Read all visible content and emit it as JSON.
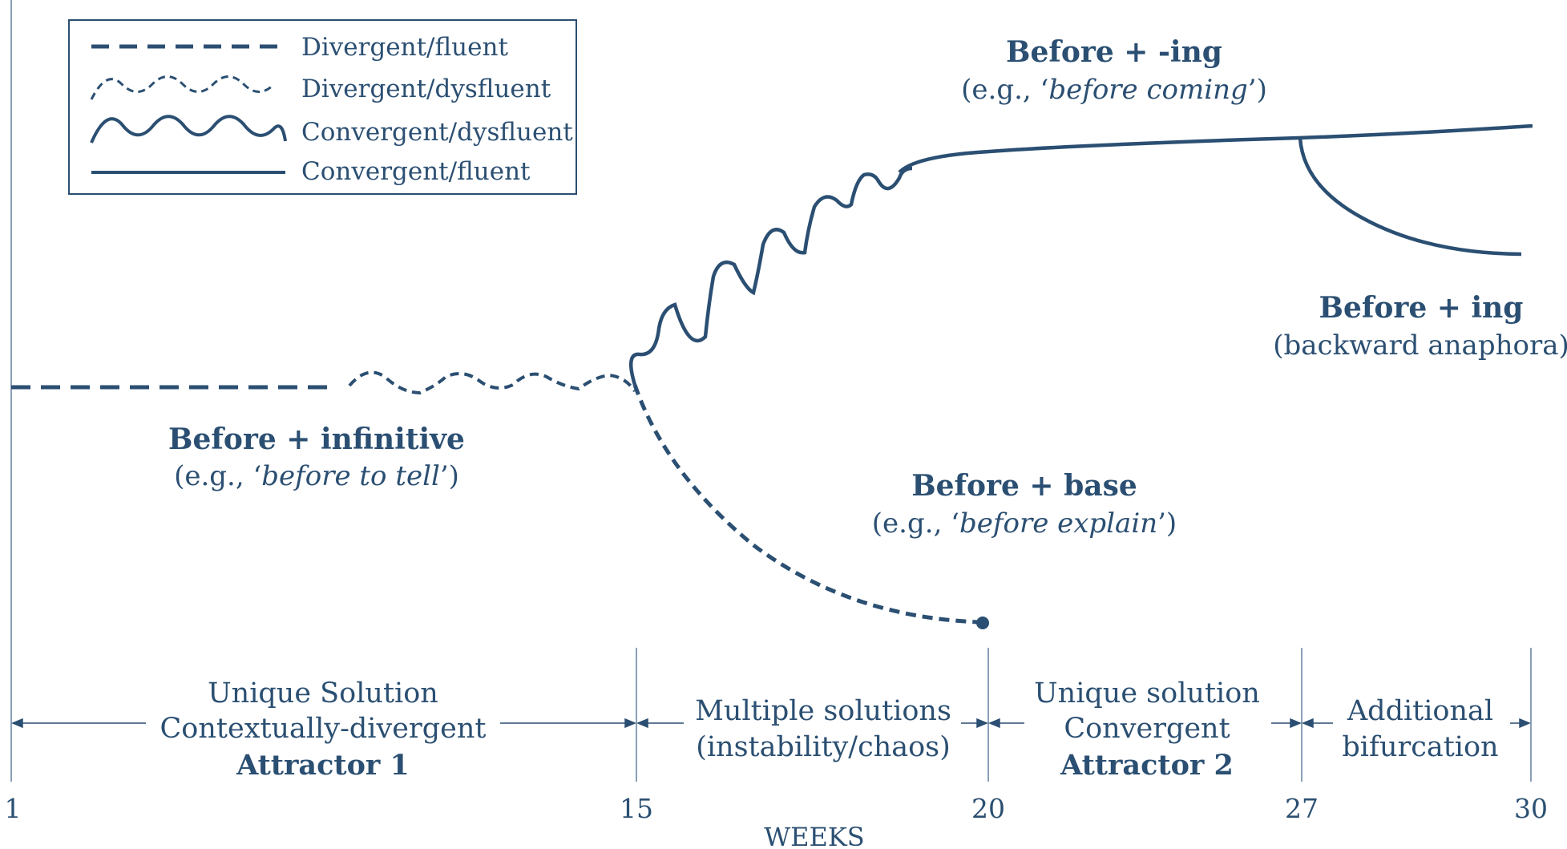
{
  "legend": {
    "items": [
      {
        "label": "Divergent/fluent",
        "style": "dashed"
      },
      {
        "label": "Divergent/dysfluent",
        "style": "dashed-wavy"
      },
      {
        "label": "Convergent/dysfluent",
        "style": "solid-wavy"
      },
      {
        "label": "Convergent/fluent",
        "style": "solid"
      }
    ]
  },
  "annotations": {
    "ing_title": "Before + -ing",
    "ing_example_prefix": "(e.g., ‘",
    "ing_example": "before coming",
    "ing_example_suffix": "’)",
    "anaphora_title": "Before + ing",
    "anaphora_sub": "(backward anaphora)",
    "infinitive_title": "Before + infinitive",
    "infinitive_example_prefix": "(e.g., ‘",
    "infinitive_example": "before to tell",
    "infinitive_example_suffix": "’)",
    "base_title": "Before + base",
    "base_example_prefix": "(e.g., ‘",
    "base_example": "before explain",
    "base_example_suffix": "’)"
  },
  "phases": [
    {
      "line1": "Unique Solution",
      "line2": "Contextually-divergent",
      "line3": "Attractor 1",
      "from_week": 1,
      "to_week": 15
    },
    {
      "line1": "Multiple solutions",
      "line2": "(instability/chaos)",
      "line3": "",
      "from_week": 15,
      "to_week": 20
    },
    {
      "line1": "Unique solution",
      "line2": "Convergent",
      "line3": "Attractor 2",
      "from_week": 20,
      "to_week": 27
    },
    {
      "line1": "Additional",
      "line2": "bifurcation",
      "line3": "",
      "from_week": 27,
      "to_week": 30
    }
  ],
  "axis": {
    "title": "WEEKS",
    "ticks": [
      "1",
      "15",
      "20",
      "27",
      "30"
    ],
    "tick_weeks": [
      1,
      15,
      20,
      27,
      30
    ]
  },
  "colors": {
    "ink": "#2b4f72",
    "guide": "#8aa0b8"
  }
}
